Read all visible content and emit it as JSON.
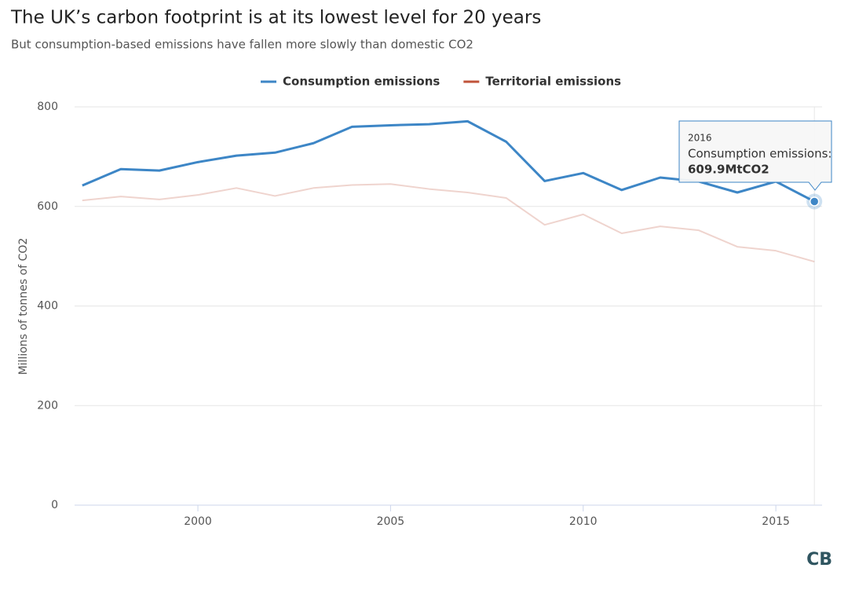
{
  "chart_data": {
    "type": "line",
    "title": "The UK’s carbon footprint is at its lowest level for 20 years",
    "subtitle": "But consumption-based emissions have fallen more slowly than domestic CO2",
    "y_label": "Millions of tonnes of CO2",
    "x": [
      1997,
      1998,
      1999,
      2000,
      2001,
      2002,
      2003,
      2004,
      2005,
      2006,
      2007,
      2008,
      2009,
      2010,
      2011,
      2012,
      2013,
      2014,
      2015,
      2016
    ],
    "series": [
      {
        "name": "Consumption emissions",
        "color": "#3d86c6",
        "values": [
          642,
          675,
          672,
          689,
          702,
          708,
          727,
          760,
          763,
          765,
          771,
          730,
          651,
          667,
          633,
          658,
          650,
          628,
          650,
          609.9
        ]
      },
      {
        "name": "Territorial emissions",
        "color": "#c0533a",
        "values": [
          612,
          620,
          614,
          623,
          637,
          621,
          637,
          643,
          645,
          635,
          628,
          617,
          563,
          584,
          546,
          560,
          552,
          519,
          511,
          489
        ]
      }
    ],
    "xlim": [
      1996.8,
      2016.2
    ],
    "xticks": [
      2000,
      2005,
      2010,
      2015
    ],
    "ylim": [
      0,
      800
    ],
    "yticks": [
      0,
      200,
      400,
      600,
      800
    ],
    "grid": true,
    "tooltip": {
      "title": "2016",
      "series_label": "Consumption emissions:",
      "value_label": "609.9MtCO2"
    },
    "credit": "CB"
  }
}
